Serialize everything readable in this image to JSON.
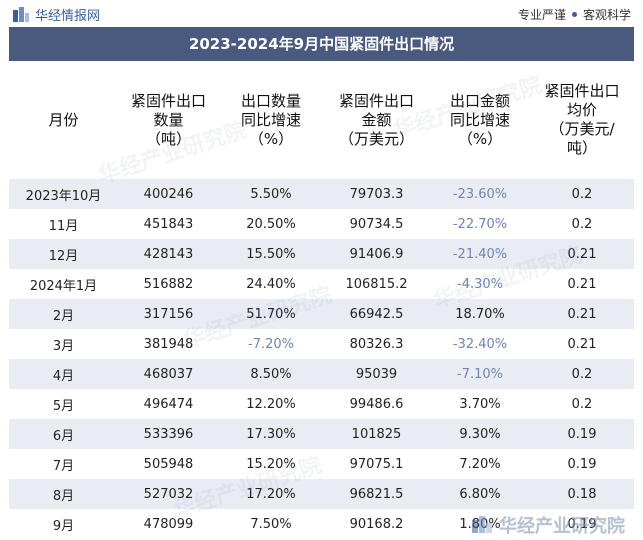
{
  "header": {
    "brand": "华经情报网",
    "slogan_left": "专业严谨",
    "slogan_right": "客观科学"
  },
  "title": "2023-2024年9月中国紧固件出口情况",
  "columns": [
    [
      "月份"
    ],
    [
      "紧固件出口",
      "数量",
      "（吨）"
    ],
    [
      "出口数量",
      "同比增速",
      "（%）"
    ],
    [
      "紧固件出口",
      "金额",
      "（万美元）"
    ],
    [
      "出口金额",
      "同比增速",
      "（%）"
    ],
    [
      "紧固件出口",
      "均价",
      "（万美元/",
      "吨）"
    ]
  ],
  "rows": [
    [
      "2023年10月",
      "400246",
      "5.50%",
      "79703.3",
      "-23.60%",
      "0.2"
    ],
    [
      "11月",
      "451843",
      "20.50%",
      "90734.5",
      "-22.70%",
      "0.2"
    ],
    [
      "12月",
      "428143",
      "15.50%",
      "91406.9",
      "-21.40%",
      "0.21"
    ],
    [
      "2024年1月",
      "516882",
      "24.40%",
      "106815.2",
      "-4.30%",
      "0.21"
    ],
    [
      "2月",
      "317156",
      "51.70%",
      "66942.5",
      "18.70%",
      "0.21"
    ],
    [
      "3月",
      "381948",
      "-7.20%",
      "80326.3",
      "-32.40%",
      "0.21"
    ],
    [
      "4月",
      "468037",
      "8.50%",
      "95039",
      "-7.10%",
      "0.2"
    ],
    [
      "5月",
      "496474",
      "12.20%",
      "99486.6",
      "3.70%",
      "0.2"
    ],
    [
      "6月",
      "533396",
      "17.30%",
      "101825",
      "9.30%",
      "0.19"
    ],
    [
      "7月",
      "505948",
      "15.20%",
      "97075.1",
      "7.20%",
      "0.19"
    ],
    [
      "8月",
      "527032",
      "17.20%",
      "96821.5",
      "6.80%",
      "0.18"
    ],
    [
      "9月",
      "478099",
      "7.50%",
      "90168.2",
      "1.80%",
      "0.19"
    ]
  ],
  "watermark": "华经产业研究院",
  "colors": {
    "title_bg": "#4a5a7e",
    "stripe": "#e9edf3",
    "negative": "#6f86b0"
  }
}
